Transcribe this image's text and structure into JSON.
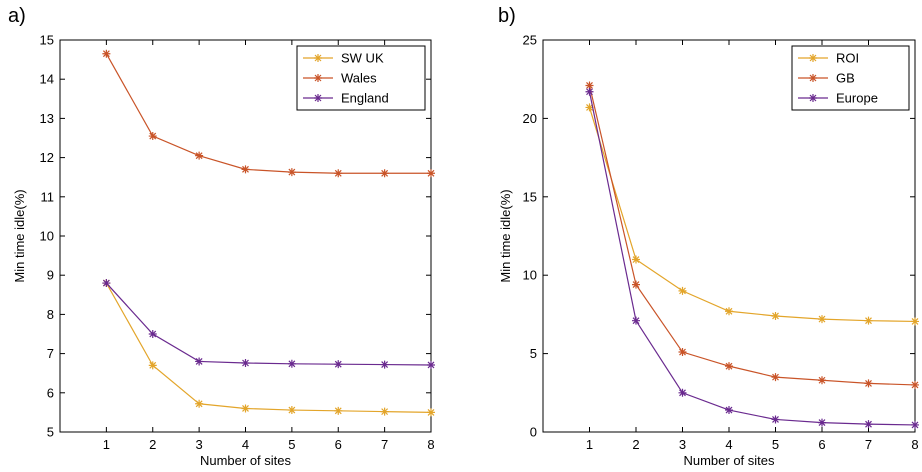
{
  "chart_data": [
    {
      "type": "line",
      "panel_label": "a)",
      "xlabel": "Number of sites",
      "ylabel": "Min time idle(%)",
      "xlim": [
        0,
        8
      ],
      "ylim": [
        5,
        15
      ],
      "xticks": [
        1,
        2,
        3,
        4,
        5,
        6,
        7,
        8
      ],
      "yticks": [
        5,
        6,
        7,
        8,
        9,
        10,
        11,
        12,
        13,
        14,
        15
      ],
      "grid": false,
      "legend_position": "top-right",
      "x": [
        1,
        2,
        3,
        4,
        5,
        6,
        7,
        8
      ],
      "series": [
        {
          "name": "SW UK",
          "color": "#e3a52a",
          "values": [
            8.8,
            6.7,
            5.72,
            5.6,
            5.56,
            5.54,
            5.52,
            5.5
          ]
        },
        {
          "name": "Wales",
          "color": "#c95428",
          "values": [
            14.65,
            12.55,
            12.05,
            11.7,
            11.63,
            11.6,
            11.6,
            11.6
          ]
        },
        {
          "name": "England",
          "color": "#6a2a8f",
          "values": [
            8.8,
            7.5,
            6.8,
            6.76,
            6.74,
            6.73,
            6.72,
            6.71
          ]
        }
      ]
    },
    {
      "type": "line",
      "panel_label": "b)",
      "xlabel": "Number of sites",
      "ylabel": "Min time idle(%)",
      "xlim": [
        0,
        8
      ],
      "ylim": [
        0,
        25
      ],
      "xticks": [
        1,
        2,
        3,
        4,
        5,
        6,
        7,
        8
      ],
      "yticks": [
        0,
        5,
        10,
        15,
        20,
        25
      ],
      "grid": false,
      "legend_position": "top-right",
      "x": [
        1,
        2,
        3,
        4,
        5,
        6,
        7,
        8
      ],
      "series": [
        {
          "name": "ROI",
          "color": "#e3a52a",
          "values": [
            20.7,
            11.0,
            9.0,
            7.7,
            7.4,
            7.2,
            7.1,
            7.05
          ]
        },
        {
          "name": "GB",
          "color": "#c95428",
          "values": [
            22.1,
            9.4,
            5.1,
            4.2,
            3.5,
            3.3,
            3.1,
            3.0
          ]
        },
        {
          "name": "Europe",
          "color": "#6a2a8f",
          "values": [
            21.7,
            7.1,
            2.5,
            1.4,
            0.8,
            0.6,
            0.5,
            0.45
          ]
        }
      ]
    }
  ]
}
